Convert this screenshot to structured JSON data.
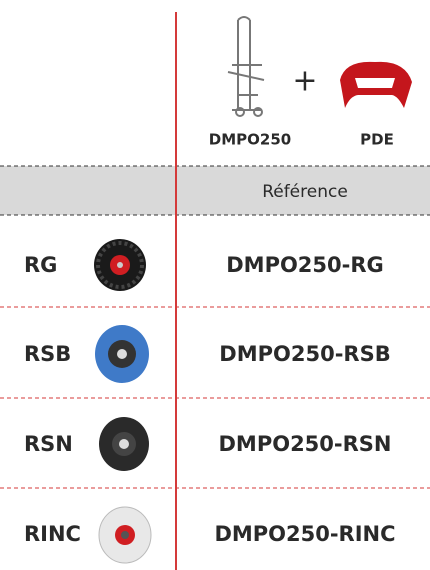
{
  "header": {
    "products": [
      {
        "label": "DMPO250"
      },
      {
        "label": "PDE"
      }
    ],
    "plus": "+"
  },
  "table": {
    "column_header": "Référence",
    "rows": [
      {
        "code": "RG",
        "reference": "DMPO250-RG"
      },
      {
        "code": "RSB",
        "reference": "DMPO250-RSB"
      },
      {
        "code": "RSN",
        "reference": "DMPO250-RSN"
      },
      {
        "code": "RINC",
        "reference": "DMPO250-RINC"
      }
    ]
  }
}
